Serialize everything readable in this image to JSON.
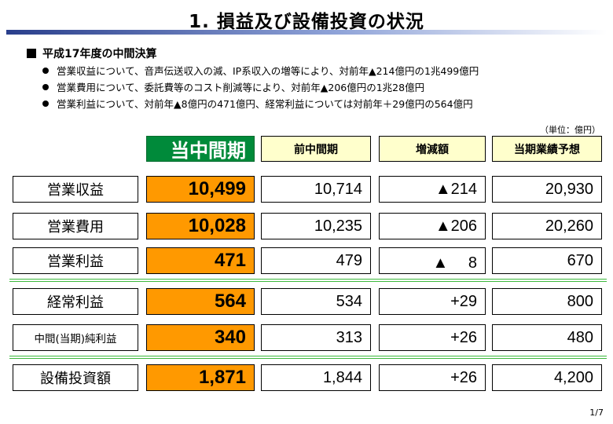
{
  "title": "1. 損益及び設備投資の状況",
  "section": "平成17年度の中間決算",
  "bullets": [
    "営業収益について、音声伝送収入の減、IP系収入の増等により、対前年▲214億円の1兆499億円",
    "営業費用について、委託費等のコスト削減等により、対前年▲206億円の1兆28億円",
    "営業利益について、対前年▲8億円の471億円、経常利益については対前年＋29億円の564億円"
  ],
  "unit": "（単位：億円）",
  "headers": [
    "当中間期",
    "前中間期",
    "増減額",
    "当期業績予想"
  ],
  "rows": [
    {
      "label": "営業収益",
      "current": "10,499",
      "previous": "10,714",
      "change": "▲214",
      "forecast": "20,930"
    },
    {
      "label": "営業費用",
      "current": "10,028",
      "previous": "10,235",
      "change": "▲206",
      "forecast": "20,260"
    },
    {
      "label": "営業利益",
      "current": "471",
      "previous": "479",
      "change": "▲　 8",
      "forecast": "670"
    },
    {
      "label": "経常利益",
      "current": "564",
      "previous": "534",
      "change": "+29",
      "forecast": "800"
    },
    {
      "label": "中間(当期)純利益",
      "current": "340",
      "previous": "313",
      "change": "+26",
      "forecast": "480"
    },
    {
      "label": "設備投資額",
      "current": "1,871",
      "previous": "1,844",
      "change": "+26",
      "forecast": "4,200"
    }
  ],
  "page_number": "1/7",
  "colors": {
    "current_header": "#008a3a",
    "current_cells": "#ff9900",
    "header_bg": "#ffffcc",
    "separator": "#3db83d"
  }
}
